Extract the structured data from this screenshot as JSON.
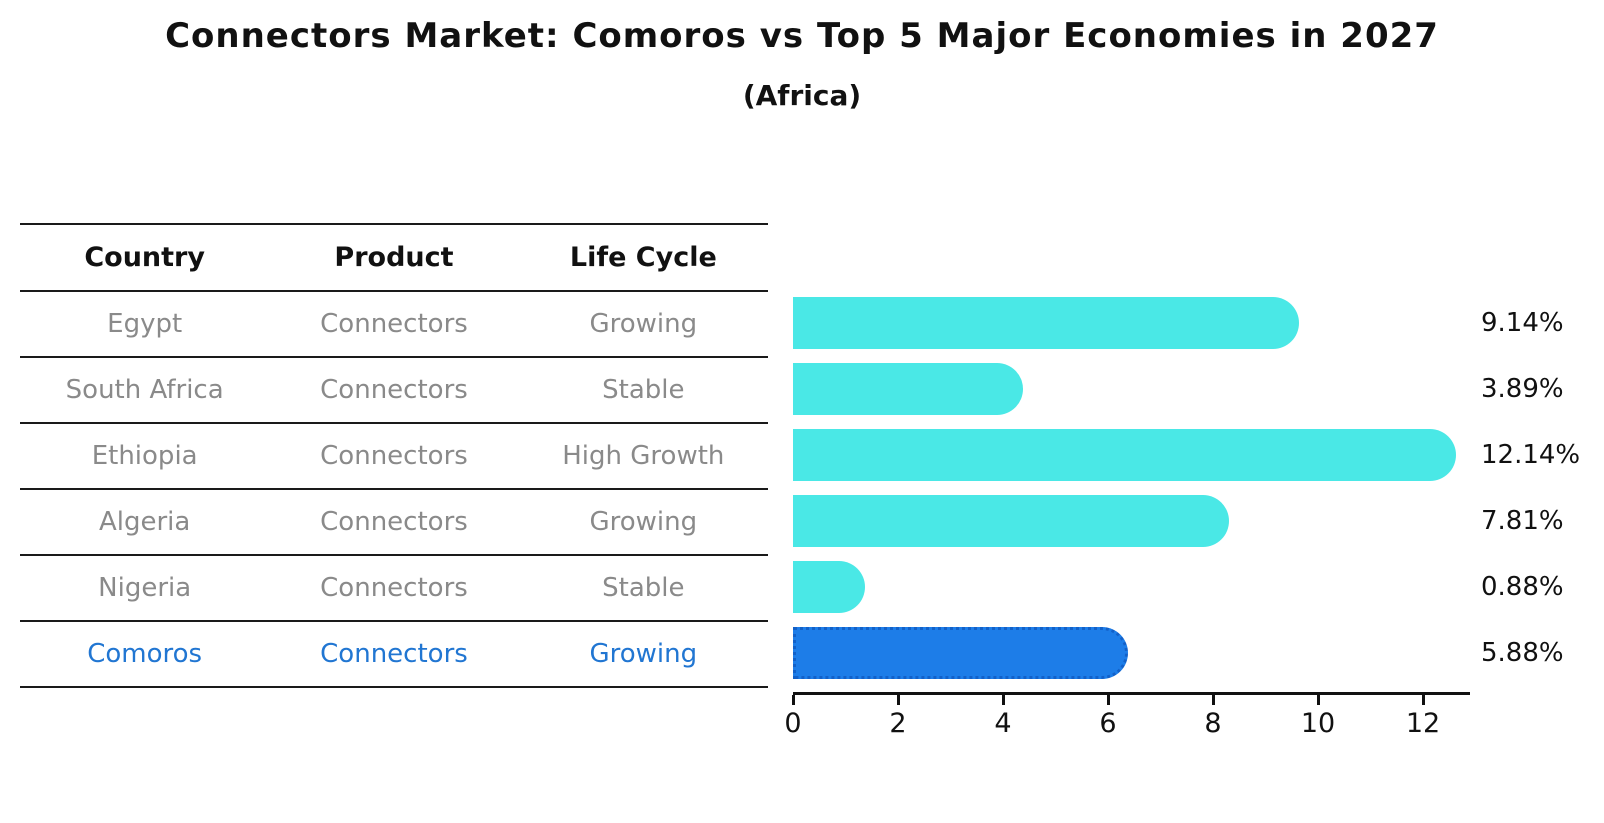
{
  "header": {
    "title": "Connectors Market: Comoros vs Top 5 Major Economies in 2027",
    "subtitle": "(Africa)"
  },
  "table": {
    "columns": [
      "Country",
      "Product",
      "Life Cycle"
    ],
    "rows": [
      {
        "country": "Egypt",
        "product": "Connectors",
        "life_cycle": "Growing",
        "highlight": false
      },
      {
        "country": "South Africa",
        "product": "Connectors",
        "life_cycle": "Stable",
        "highlight": false
      },
      {
        "country": "Ethiopia",
        "product": "Connectors",
        "life_cycle": "High Growth",
        "highlight": false
      },
      {
        "country": "Algeria",
        "product": "Connectors",
        "life_cycle": "Growing",
        "highlight": false
      },
      {
        "country": "Nigeria",
        "product": "Connectors",
        "life_cycle": "Stable",
        "highlight": false
      },
      {
        "country": "Comoros",
        "product": "Connectors",
        "life_cycle": "Growing",
        "highlight": true
      }
    ]
  },
  "chart_data": {
    "type": "bar",
    "orientation": "horizontal",
    "title": "Connectors Market: Comoros vs Top 5 Major Economies in 2027",
    "subtitle": "(Africa)",
    "categories": [
      "Egypt",
      "South Africa",
      "Ethiopia",
      "Algeria",
      "Nigeria",
      "Comoros"
    ],
    "values": [
      9.14,
      3.89,
      12.14,
      7.81,
      0.88,
      5.88
    ],
    "value_labels": [
      "9.14%",
      "3.89%",
      "12.14%",
      "7.81%",
      "0.88%",
      "5.88%"
    ],
    "x_ticks": [
      0,
      2,
      4,
      6,
      8,
      10,
      12
    ],
    "xlim": [
      0,
      12.9
    ],
    "grid": false,
    "legend": "none",
    "highlight_index": 5,
    "colors": {
      "bar": "#4AE8E6",
      "highlight_bar": "#1D7DE8",
      "highlight_border": "#1261C9",
      "row_text": "#8a8a8a",
      "highlight_text": "#2176d2",
      "axis": "#111111"
    }
  }
}
